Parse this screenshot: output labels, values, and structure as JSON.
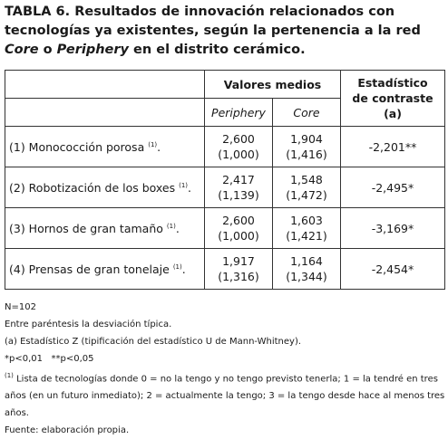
{
  "title": {
    "parts": [
      "TABLA 6. Resultados de innovación relacionados con tecnologías ya existentes, según la pertenencia a la red ",
      "Core",
      " o ",
      "Periphery",
      " en el distrito cerámico."
    ]
  },
  "table": {
    "header": {
      "group": "Valores medios",
      "stat": "Estadístico de contraste (a)",
      "periphery": "Periphery",
      "core": "Core"
    },
    "rows": [
      {
        "label": "(1) Monococción porosa",
        "note": "(1)",
        "end": ".",
        "periphery": "2,600",
        "periphery_sd": "(1,000)",
        "core": "1,904",
        "core_sd": "(1,416)",
        "stat": "-2,201**"
      },
      {
        "label": "(2) Robotización de los boxes",
        "note": "(1)",
        "end": ".",
        "periphery": "2,417",
        "periphery_sd": "(1,139)",
        "core": "1,548",
        "core_sd": "(1,472)",
        "stat": "-2,495*"
      },
      {
        "label": "(3) Hornos de gran tamaño",
        "note": "(1)",
        "end": ".",
        "periphery": "2,600",
        "periphery_sd": "(1,000)",
        "core": "1,603",
        "core_sd": "(1,421)",
        "stat": "-3,169*"
      },
      {
        "label": "(4) Prensas de gran tonelaje",
        "note": "(1)",
        "end": ".",
        "periphery": "1,917",
        "periphery_sd": "(1,316)",
        "core": "1,164",
        "core_sd": "(1,344)",
        "stat": "-2,454*"
      }
    ]
  },
  "notes": {
    "n": "N=102",
    "sd": "Entre paréntesis la desviación típica.",
    "a": "(a) Estadístico Z (tipificación del estadístico U de Mann-Whitney).",
    "p": "*p<0,01   **p<0,05",
    "footnote_mark": "(1)",
    "footnote": "Lista de tecnologías donde 0 = no la tengo y no tengo previsto tenerla; 1 = la tendré en tres años (en un futuro inmediato); 2 = actualmente la tengo; 3 = la tengo desde hace al menos tres años.",
    "source": "Fuente: elaboración propia."
  }
}
